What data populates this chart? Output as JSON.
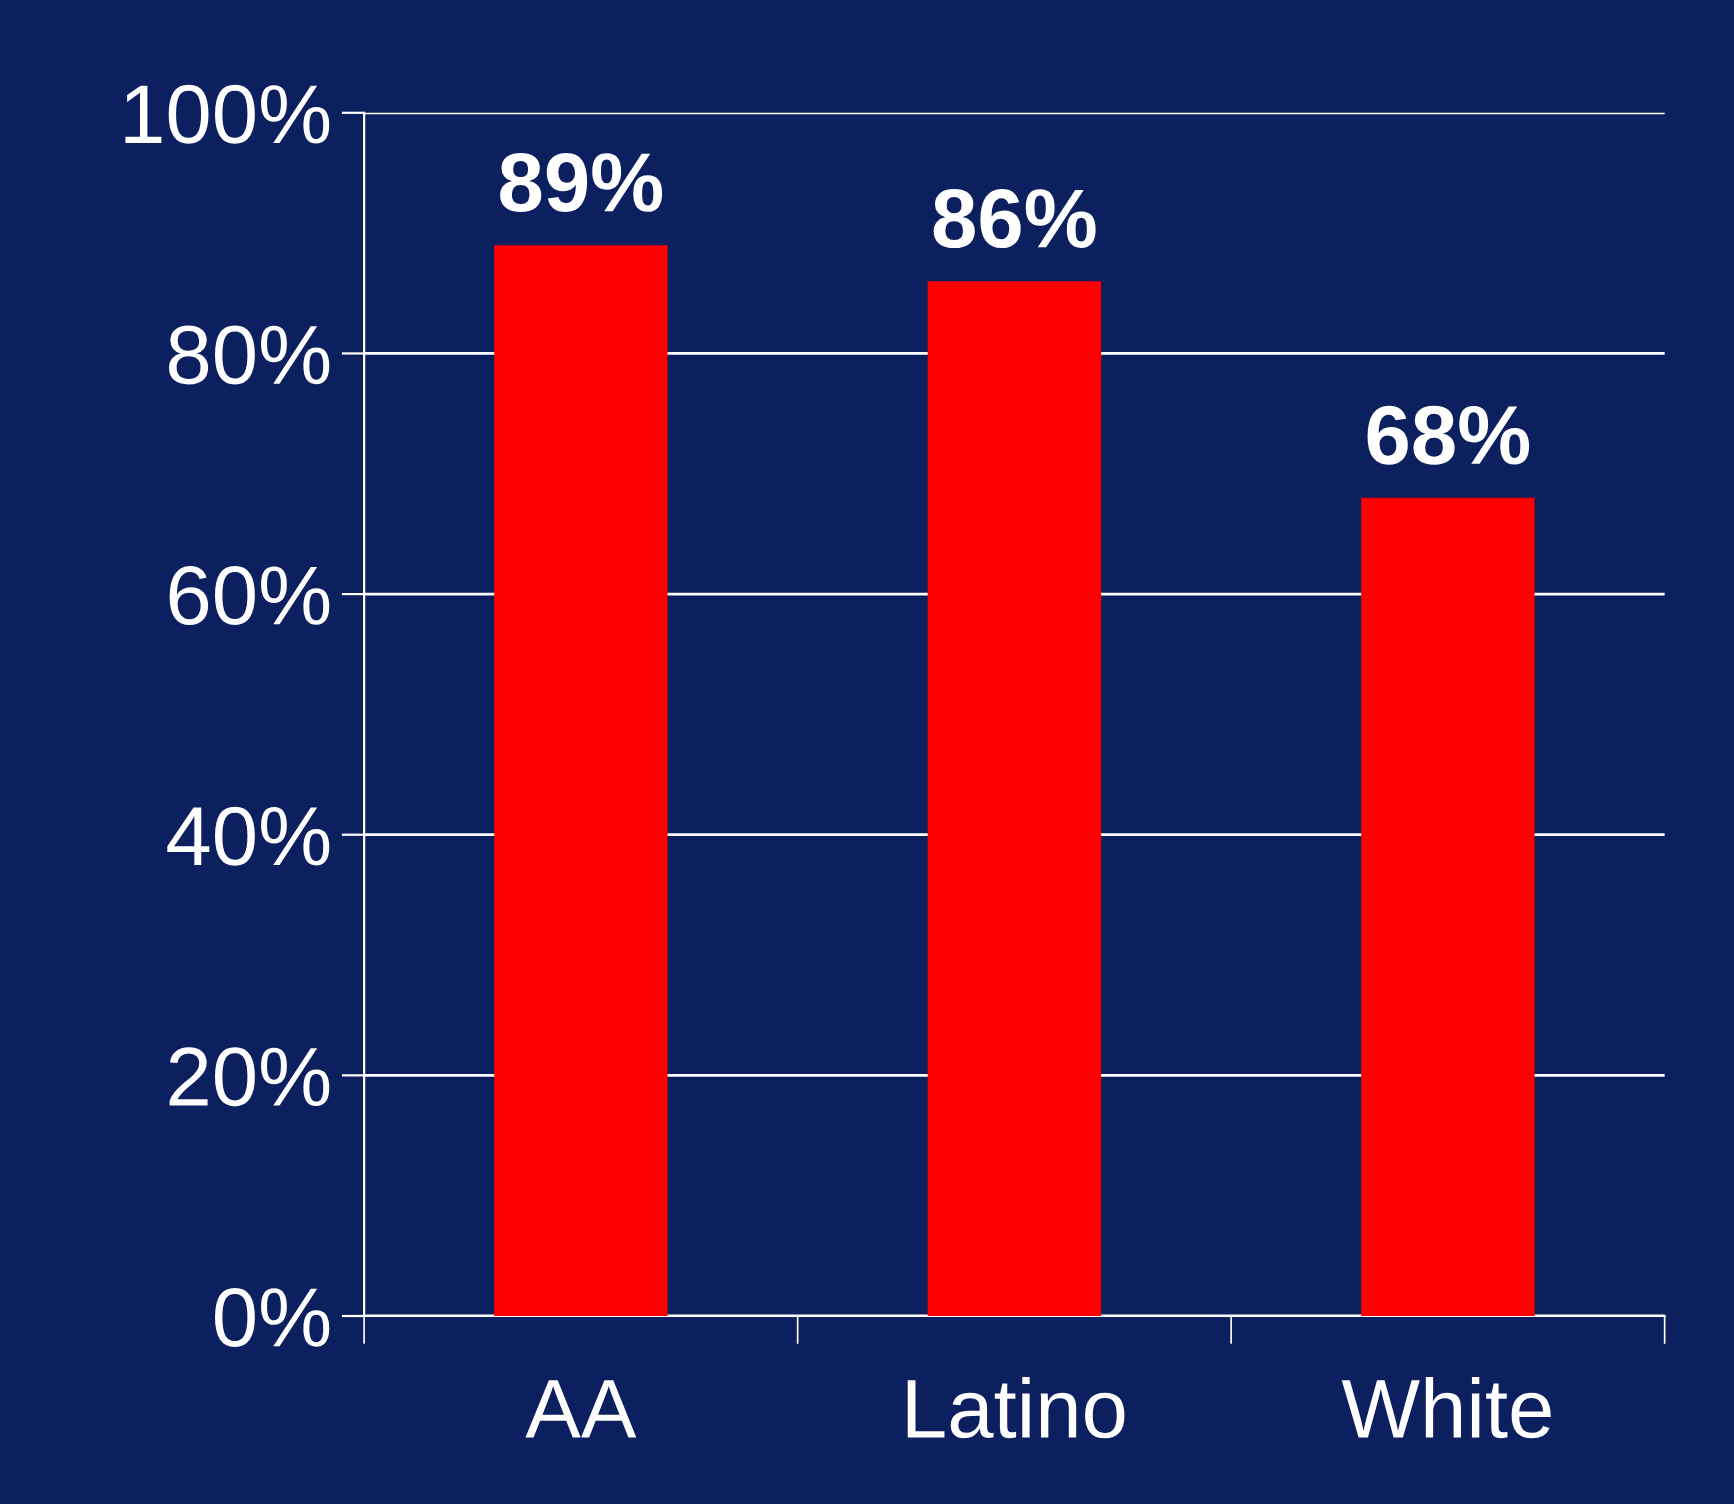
{
  "chart_data": {
    "type": "bar",
    "categories": [
      "AA",
      "Latino",
      "White"
    ],
    "values": [
      89,
      86,
      68
    ],
    "value_labels": [
      "89%",
      "86%",
      "68%"
    ],
    "color": "#ff0000",
    "ylim": [
      0,
      100
    ],
    "yticks": [
      {
        "value": 0,
        "label": "0%"
      },
      {
        "value": 20,
        "label": "20%"
      },
      {
        "value": 40,
        "label": "40%"
      },
      {
        "value": 60,
        "label": "60%"
      },
      {
        "value": 80,
        "label": "80%"
      },
      {
        "value": 100,
        "label": "100%"
      }
    ],
    "grid": "y"
  }
}
